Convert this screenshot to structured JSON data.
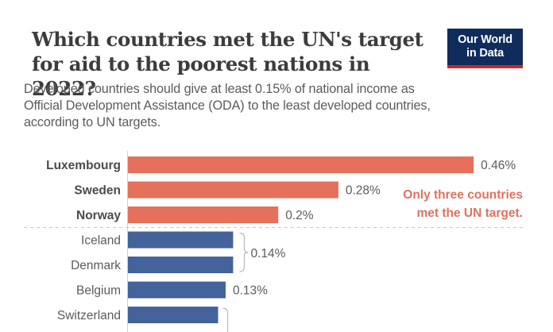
{
  "header": {
    "title_line1": "Which countries met the UN's target",
    "title_line2": "for aid to the poorest nations in 2022?",
    "subtitle_line1": "Developed countries should give at least 0.15% of national income as",
    "subtitle_line2": "Official Development Assistance (ODA) to the least developed countries,",
    "subtitle_line3": "according to UN targets.",
    "logo_line1": "Our World",
    "logo_line2": "in Data"
  },
  "colors": {
    "met_target": "#e5705b",
    "below_target": "#44639b",
    "logo_bg": "#0f2c5c",
    "logo_accent": "#ce261e",
    "annotation": "#e0725f"
  },
  "chart_data": {
    "type": "bar",
    "orientation": "horizontal",
    "title": "Which countries met the UN's target for aid to the poorest nations in 2022?",
    "subtitle": "Developed countries should give at least 0.15% of national income as Official Development Assistance (ODA) to the least developed countries, according to UN targets.",
    "xlabel": "",
    "ylabel": "",
    "unit": "% of national income",
    "target": 0.15,
    "xlim": [
      0,
      0.5
    ],
    "grid": false,
    "categories": [
      "Luxembourg",
      "Sweden",
      "Norway",
      "Iceland",
      "Denmark",
      "Belgium",
      "Switzerland"
    ],
    "values": [
      0.46,
      0.28,
      0.2,
      0.14,
      0.14,
      0.13,
      0.12
    ],
    "met_target": [
      true,
      true,
      true,
      false,
      false,
      false,
      false
    ],
    "data_labels": [
      {
        "text": "0.46%",
        "rows": [
          0
        ]
      },
      {
        "text": "0.28%",
        "rows": [
          1
        ]
      },
      {
        "text": "0.2%",
        "rows": [
          2
        ]
      },
      {
        "text": "0.14%",
        "rows": [
          3,
          4
        ]
      },
      {
        "text": "0.13%",
        "rows": [
          5
        ]
      },
      {
        "text": "",
        "rows": [
          6
        ]
      }
    ],
    "annotation_line1": "Only three countries",
    "annotation_line2": "met the UN target."
  }
}
